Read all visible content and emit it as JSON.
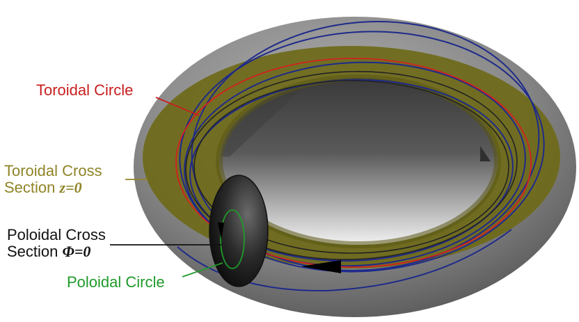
{
  "labels": {
    "toroidal_circle": "Toroidal Circle",
    "toroidal_cross_section_line1": "Toroidal Cross",
    "toroidal_cross_section_line2": "Section",
    "toroidal_cross_section_var": "z=0",
    "poloidal_cross_section_line1": "Poloidal Cross",
    "poloidal_cross_section_line2": "Section",
    "poloidal_cross_section_var": "Φ=0",
    "poloidal_circle": "Poloidal Circle"
  },
  "colors": {
    "torus_surface": "#8a8a8a",
    "torus_dark": "#3e3e3e",
    "toroidal_section_fill": "#6e6a1a",
    "toroidal_circle": "#d42020",
    "toroidal_label": "#c81e1e",
    "toroidal_cross_label": "#8f8428",
    "poloidal_cross_label": "#111111",
    "poloidal_circle": "#1f9a2a",
    "field_lines": "#1e2a8a",
    "black_line": "#222222"
  }
}
